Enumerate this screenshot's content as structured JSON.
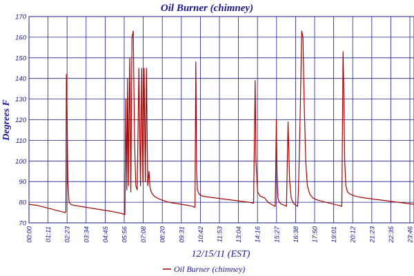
{
  "chart_data": {
    "type": "line",
    "title": "Oil Burner (chimney)",
    "xlabel": "12/15/11 (EST)",
    "ylabel": "Degrees F",
    "ylim": [
      70,
      170
    ],
    "xlim_hours": [
      0,
      24
    ],
    "yticks": [
      70,
      80,
      90,
      100,
      110,
      120,
      130,
      140,
      150,
      160,
      170
    ],
    "xticks": [
      "00:00",
      "01:11",
      "02:23",
      "03:34",
      "04:45",
      "05:56",
      "07:08",
      "08:20",
      "09:31",
      "10:42",
      "11:53",
      "13:04",
      "14:16",
      "15:27",
      "16:38",
      "17:50",
      "19:01",
      "20:12",
      "21:23",
      "22:35",
      "23:46"
    ],
    "grid": true,
    "legend_position": "bottom-center",
    "series": [
      {
        "name": "Oil Burner (chimney)",
        "color": "#a50000",
        "x_hours": [
          0.0,
          0.5,
          1.0,
          1.5,
          2.0,
          2.25,
          2.3,
          2.33,
          2.38,
          2.42,
          2.46,
          2.5,
          2.6,
          2.8,
          3.2,
          3.6,
          4.0,
          4.4,
          4.8,
          5.2,
          5.5,
          5.8,
          5.98,
          6.04,
          6.1,
          6.15,
          6.2,
          6.28,
          6.35,
          6.42,
          6.5,
          6.58,
          6.66,
          6.75,
          6.85,
          6.95,
          7.03,
          7.1,
          7.18,
          7.25,
          7.32,
          7.4,
          7.48,
          7.55,
          7.62,
          7.7,
          7.8,
          8.0,
          8.3,
          8.7,
          9.1,
          9.5,
          9.9,
          10.2,
          10.35,
          10.4,
          10.45,
          10.5,
          10.6,
          10.8,
          11.2,
          11.7,
          12.2,
          12.7,
          13.2,
          13.7,
          14.0,
          14.1,
          14.15,
          14.25,
          14.4,
          14.55,
          14.7,
          14.9,
          15.1,
          15.35,
          15.42,
          15.46,
          15.52,
          15.6,
          15.75,
          15.95,
          16.05,
          16.15,
          16.25,
          16.35,
          16.45,
          16.55,
          16.65,
          16.75,
          16.8,
          16.9,
          17.0,
          17.08,
          17.15,
          17.25,
          17.35,
          17.5,
          17.7,
          18.0,
          18.5,
          19.0,
          19.3,
          19.5,
          19.58,
          19.62,
          19.68,
          19.75,
          19.85,
          20.0,
          20.3,
          20.6,
          21.0,
          21.5,
          22.0,
          22.5,
          23.0,
          23.5,
          24.0
        ],
        "values": [
          79,
          78.5,
          77.5,
          76.5,
          75.5,
          75,
          75.5,
          142,
          120,
          90,
          85,
          80,
          79,
          78.5,
          78,
          77.5,
          77,
          76.5,
          76,
          75.5,
          75,
          74.5,
          74,
          130,
          86,
          140,
          88,
          150,
          85,
          160,
          163,
          110,
          88,
          86,
          145,
          88,
          145,
          90,
          145,
          90,
          145,
          88,
          95,
          87,
          85,
          84,
          83,
          82,
          81,
          80,
          79.5,
          79,
          78.5,
          78,
          77.5,
          148,
          95,
          86,
          84,
          83,
          82.5,
          82,
          81.5,
          81,
          80.5,
          80,
          79.5,
          139,
          100,
          85,
          83,
          82.5,
          82,
          80,
          79,
          78,
          120,
          95,
          82,
          80,
          79,
          78.5,
          78,
          119,
          90,
          82,
          80,
          79,
          78.5,
          78,
          86,
          120,
          163,
          160,
          130,
          100,
          88,
          84,
          82,
          81,
          80,
          79,
          78.5,
          78,
          153,
          135,
          100,
          88,
          85,
          84,
          83,
          82.5,
          82,
          81.5,
          81,
          80.5,
          80,
          79.5,
          79
        ]
      }
    ]
  }
}
